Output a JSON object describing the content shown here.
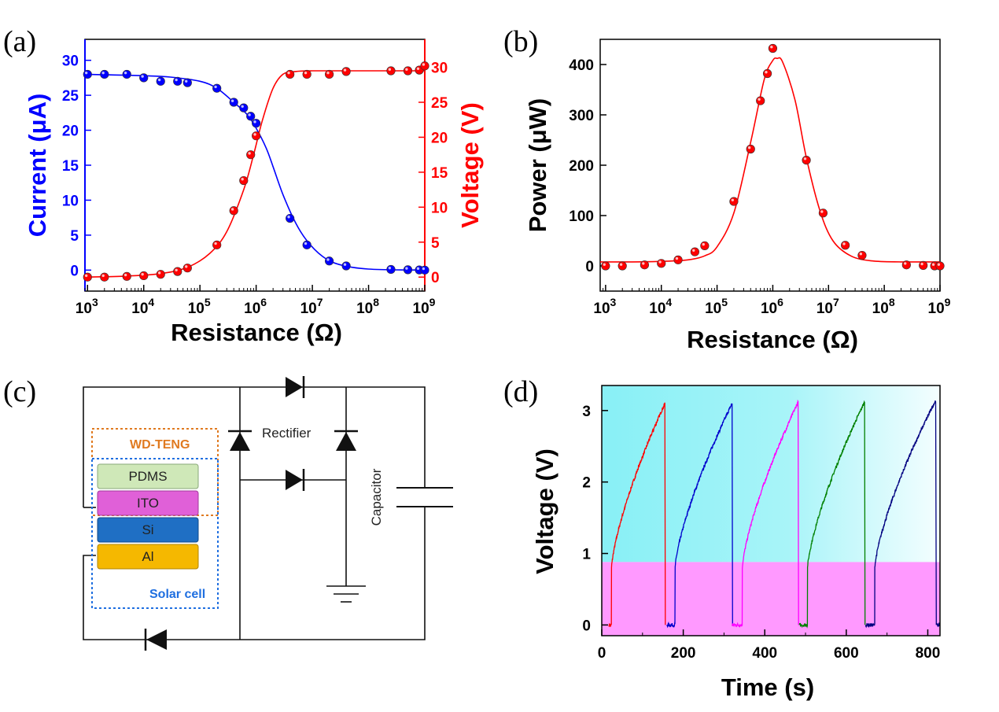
{
  "chart_data": [
    {
      "panel": "(a)",
      "type": "scatter",
      "x_scale": "log",
      "xlabel": "Resistance (Ω)",
      "xlim": [
        900,
        1000000000
      ],
      "x_ticks": [
        {
          "value": 1000,
          "base": "10",
          "exp": "3"
        },
        {
          "value": 10000,
          "base": "10",
          "exp": "4"
        },
        {
          "value": 100000,
          "base": "10",
          "exp": "5"
        },
        {
          "value": 1000000,
          "base": "10",
          "exp": "6"
        },
        {
          "value": 10000000,
          "base": "10",
          "exp": "7"
        },
        {
          "value": 100000000,
          "base": "10",
          "exp": "8"
        },
        {
          "value": 1000000000,
          "base": "10",
          "exp": "9"
        }
      ],
      "y_left": {
        "label": "Current (μA)",
        "lim": [
          -3,
          33
        ],
        "ticks": [
          "0",
          "5",
          "10",
          "15",
          "20",
          "25",
          "30"
        ],
        "color": "#0000ff"
      },
      "y_right": {
        "label": "Voltage (V)",
        "lim": [
          -2,
          34
        ],
        "ticks": [
          "0",
          "5",
          "10",
          "15",
          "20",
          "25",
          "30"
        ],
        "color": "#ff0000"
      },
      "series": [
        {
          "name": "Current",
          "axis": "left",
          "color": "#0000ff",
          "x": [
            1000,
            2000,
            5000,
            10000,
            20000,
            40000,
            60000,
            200000,
            400000,
            600000,
            800000,
            1000000,
            4000000,
            8000000,
            20000000,
            40000000,
            250000000,
            500000000,
            800000000,
            1000000000
          ],
          "y": [
            28,
            28,
            28,
            27.5,
            27,
            27,
            26.8,
            26,
            24,
            23.2,
            22,
            21,
            7.4,
            3.6,
            1.3,
            0.6,
            0.1,
            0.05,
            0.02,
            0.0
          ],
          "fit_x": [
            900,
            3000,
            10000,
            30000,
            100000,
            200000,
            400000,
            700000,
            1000000,
            1500000,
            2000000,
            3000000,
            5000000,
            8000000,
            15000000,
            30000000,
            100000000,
            1000000000
          ],
          "fit_y": [
            28,
            27.9,
            27.8,
            27.6,
            27,
            26,
            24,
            22.2,
            20.3,
            17.5,
            14.8,
            10.8,
            6.8,
            4.2,
            2,
            0.8,
            0.15,
            0
          ]
        },
        {
          "name": "Voltage",
          "axis": "right",
          "color": "#ff0000",
          "x": [
            1000,
            2000,
            5000,
            10000,
            20000,
            40000,
            60000,
            200000,
            400000,
            600000,
            800000,
            1000000,
            4000000,
            8000000,
            20000000,
            40000000,
            250000000,
            500000000,
            800000000,
            1000000000
          ],
          "y": [
            0,
            0,
            0.1,
            0.2,
            0.4,
            0.8,
            1.3,
            4.6,
            9.5,
            13.8,
            17.5,
            20.2,
            29,
            29,
            29,
            29.4,
            29.5,
            29.5,
            29.6,
            30.2
          ],
          "fit_x": [
            900,
            5000,
            20000,
            60000,
            150000,
            300000,
            600000,
            900000,
            1300000,
            2000000,
            3000000,
            5000000,
            10000000,
            30000000,
            100000000,
            1000000000
          ],
          "fit_y": [
            0,
            0.15,
            0.5,
            1.4,
            3.4,
            6.5,
            12.5,
            17.5,
            22.5,
            27,
            29,
            29.4,
            29.5,
            29.5,
            29.5,
            29.5
          ]
        }
      ]
    },
    {
      "panel": "(b)",
      "type": "scatter",
      "x_scale": "log",
      "xlabel": "Resistance (Ω)",
      "xlim": [
        800,
        1000000000
      ],
      "x_ticks": [
        {
          "value": 1000,
          "base": "10",
          "exp": "3"
        },
        {
          "value": 10000,
          "base": "10",
          "exp": "4"
        },
        {
          "value": 100000,
          "base": "10",
          "exp": "5"
        },
        {
          "value": 1000000,
          "base": "10",
          "exp": "6"
        },
        {
          "value": 10000000,
          "base": "10",
          "exp": "7"
        },
        {
          "value": 100000000,
          "base": "10",
          "exp": "8"
        },
        {
          "value": 1000000000,
          "base": "10",
          "exp": "9"
        }
      ],
      "ylabel": "Power (μW)",
      "ylim": [
        -50,
        450
      ],
      "y_ticks": [
        "0",
        "100",
        "200",
        "300",
        "400"
      ],
      "series": [
        {
          "name": "Power",
          "color": "#ff0000",
          "x": [
            1000,
            2000,
            5000,
            10000,
            20000,
            40000,
            60000,
            200000,
            400000,
            600000,
            800000,
            1000000,
            4000000,
            8000000,
            20000000,
            40000000,
            250000000,
            500000000,
            800000000,
            1000000000
          ],
          "y": [
            0,
            0,
            2,
            5,
            12,
            28,
            40,
            128,
            232,
            328,
            382,
            432,
            210,
            105,
            41,
            21,
            2,
            1,
            0,
            0
          ],
          "fit_x": [
            800,
            3000,
            10000,
            30000,
            60000,
            100000,
            200000,
            400000,
            700000,
            1000000,
            1200000,
            1500000,
            2500000,
            4000000,
            7000000,
            12000000,
            25000000,
            60000000,
            200000000,
            1000000000
          ],
          "fit_y": [
            8,
            8,
            9,
            12,
            20,
            38,
            105,
            245,
            370,
            408,
            412,
            405,
            330,
            215,
            110,
            50,
            20,
            10,
            8,
            8
          ]
        }
      ]
    },
    {
      "panel": "(d)",
      "type": "line",
      "xlabel": "Time (s)",
      "ylabel": "Voltage (V)",
      "xlim": [
        0,
        830
      ],
      "ylim": [
        -0.15,
        3.35
      ],
      "x_ticks": [
        "0",
        "200",
        "400",
        "600",
        "800"
      ],
      "y_ticks": [
        "0",
        "1",
        "2",
        "3"
      ],
      "threshold_y": 0.88,
      "series": [
        {
          "color": "#ff0000",
          "start": 18,
          "rise": 24,
          "peak": 155,
          "v0": 0.8,
          "vpeak": 3.1
        },
        {
          "color": "#0000cc",
          "start": 160,
          "rise": 180,
          "peak": 320,
          "v0": 0.8,
          "vpeak": 3.1
        },
        {
          "color": "#ff00ff",
          "start": 320,
          "rise": 345,
          "peak": 482,
          "v0": 0.8,
          "vpeak": 3.12
        },
        {
          "color": "#008000",
          "start": 485,
          "rise": 505,
          "peak": 645,
          "v0": 0.8,
          "vpeak": 3.12
        },
        {
          "color": "#000080",
          "start": 648,
          "rise": 670,
          "peak": 820,
          "v0": 0.8,
          "vpeak": 3.15
        }
      ]
    }
  ],
  "diagram": {
    "panel": "(c)",
    "rectifier_label": "Rectifier",
    "capacitor_label": "Capacitor",
    "wd_teng_label": "WD-TENG",
    "solar_cell_label": "Solar cell",
    "layers": [
      {
        "label": "PDMS",
        "color": "#cfe8b8"
      },
      {
        "label": "ITO",
        "color": "#e060d8"
      },
      {
        "label": "Si",
        "color": "#1f6fc4"
      },
      {
        "label": "Al",
        "color": "#f5b800"
      }
    ]
  }
}
